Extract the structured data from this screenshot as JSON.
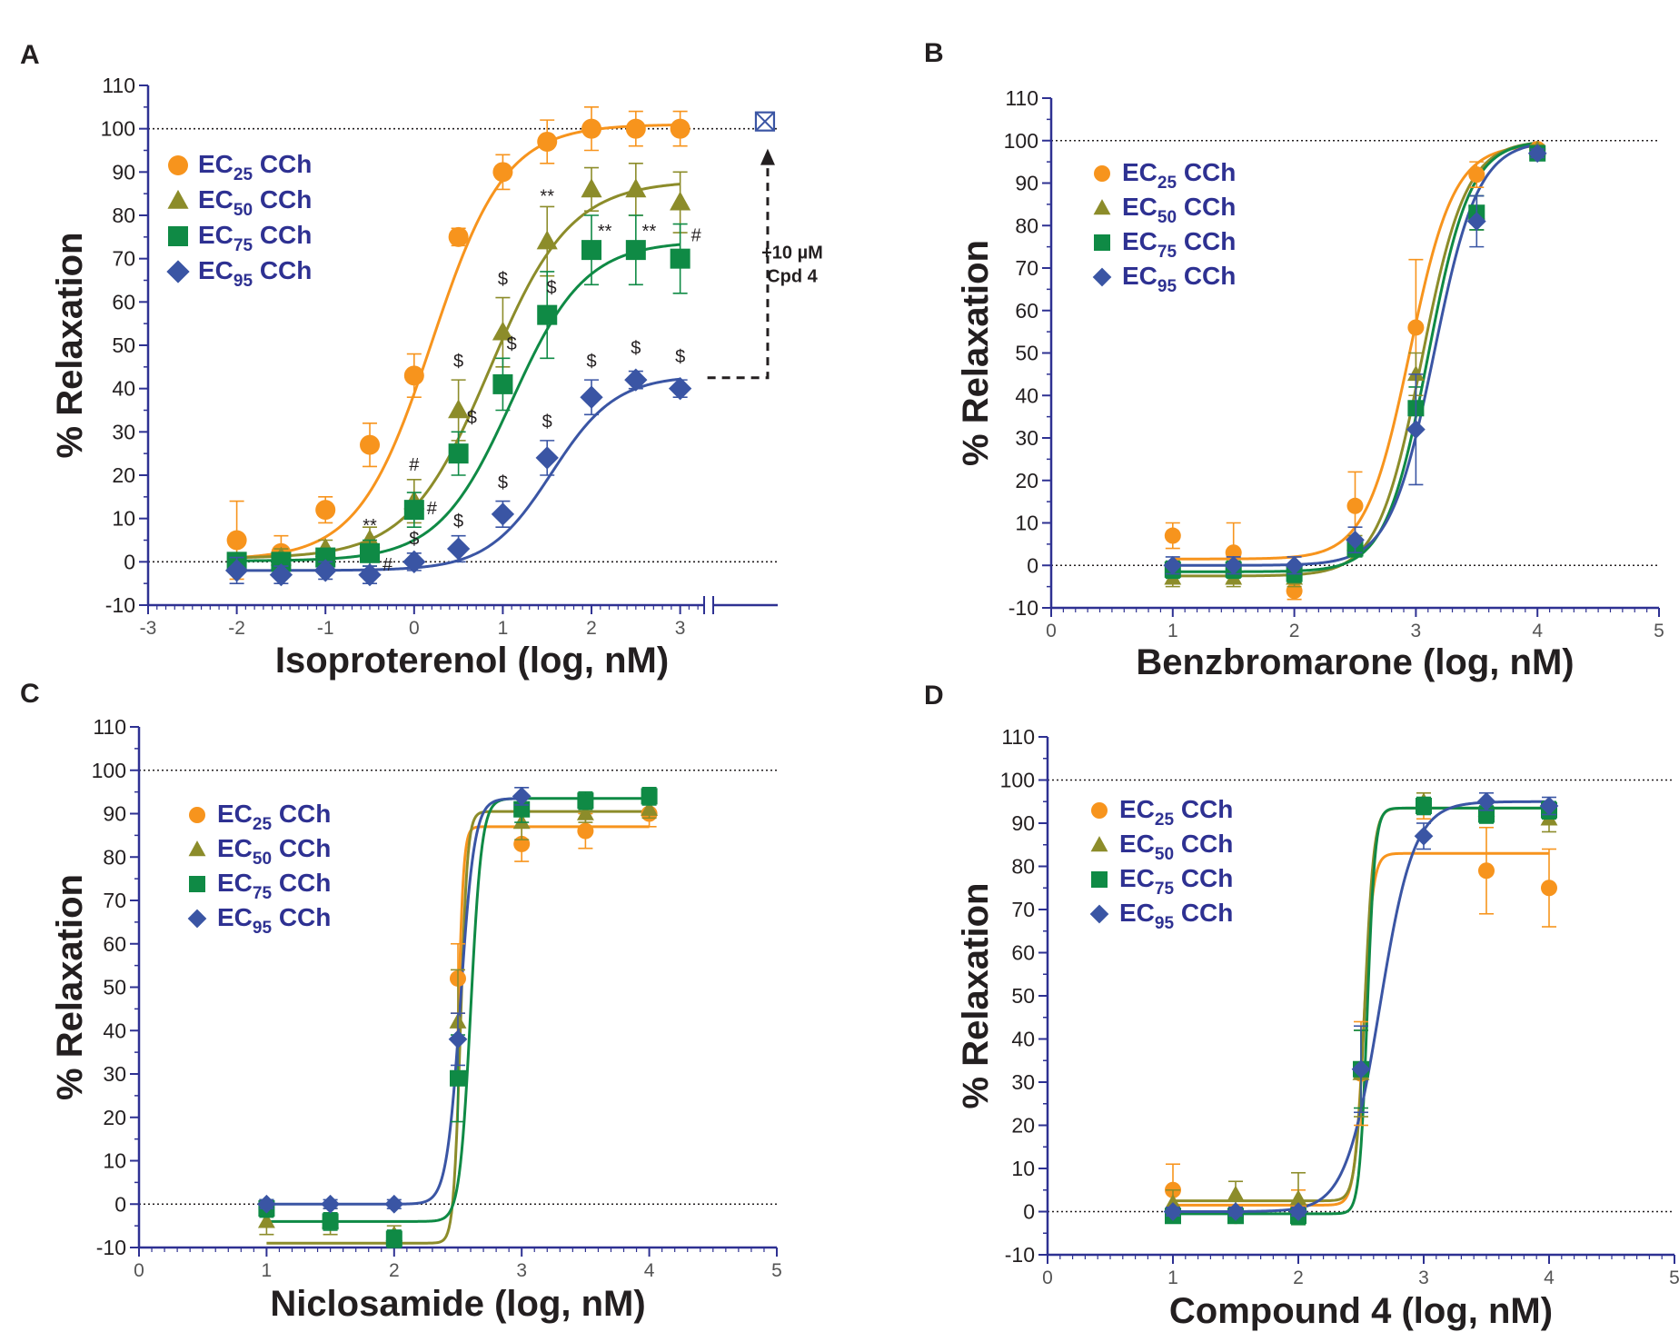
{
  "colors": {
    "axis": "#2e3192",
    "legend_text": "#2e3192",
    "text": "#231f20",
    "EC25": "#f7941d",
    "EC50": "#8c8c2a",
    "EC75": "#0f8a45",
    "EC95": "#3a55a4",
    "annotation": "#2e3192"
  },
  "legend_entries": [
    {
      "key": "EC25",
      "base": "EC",
      "sub": "25",
      "suffix": " CCh",
      "marker": "circle"
    },
    {
      "key": "EC50",
      "base": "EC",
      "sub": "50",
      "suffix": " CCh",
      "marker": "triangle"
    },
    {
      "key": "EC75",
      "base": "EC",
      "sub": "75",
      "suffix": " CCh",
      "marker": "square"
    },
    {
      "key": "EC95",
      "base": "EC",
      "sub": "95",
      "suffix": " CCh",
      "marker": "diamond"
    }
  ],
  "chart_data": [
    {
      "panel": "A",
      "type": "line",
      "xlabel": "Isoproterenol (log, nM)",
      "ylabel": "% Relaxation",
      "xlim": [
        -3,
        4.1
      ],
      "ylim": [
        -10,
        110
      ],
      "xticks": [
        -3,
        -2,
        -1,
        0,
        1,
        2,
        3
      ],
      "yticks": [
        -10,
        0,
        10,
        20,
        30,
        40,
        50,
        60,
        70,
        80,
        90,
        100,
        110
      ],
      "axis_break": true,
      "reference_lines": [
        0,
        100
      ],
      "legend_position": "top-left",
      "series": [
        {
          "key": "EC25",
          "name": "EC25 CCh",
          "x": [
            -2,
            -1.5,
            -1,
            -0.5,
            0,
            0.5,
            1,
            1.5,
            2,
            2.5,
            3
          ],
          "y": [
            5,
            2,
            12,
            27,
            43,
            75,
            90,
            97,
            100,
            100,
            100
          ],
          "err": [
            9,
            4,
            3,
            5,
            5,
            2,
            4,
            5,
            5,
            4,
            4
          ],
          "fit": {
            "bottom": 0.5,
            "top": 101,
            "ec50": 0.2,
            "hill": 1.05
          }
        },
        {
          "key": "EC50",
          "name": "EC50 CCh",
          "x": [
            -2,
            -1.5,
            -1,
            -0.5,
            0,
            0.5,
            1,
            1.5,
            2,
            2.5,
            3
          ],
          "y": [
            0,
            1,
            3,
            5,
            14,
            35,
            53,
            74,
            86,
            86,
            83
          ],
          "err": [
            2,
            2,
            2,
            3,
            5,
            7,
            8,
            8,
            5,
            6,
            7
          ],
          "fit": {
            "bottom": 0.8,
            "top": 88,
            "ec50": 0.85,
            "hill": 0.95
          }
        },
        {
          "key": "EC75",
          "name": "EC75 CCh",
          "x": [
            -2,
            -1.5,
            -1,
            -0.5,
            0,
            0.5,
            1,
            1.5,
            2,
            2.5,
            3
          ],
          "y": [
            0,
            0,
            1,
            2,
            12,
            25,
            41,
            57,
            72,
            72,
            70
          ],
          "err": [
            2,
            2,
            2,
            3,
            4,
            5,
            6,
            10,
            8,
            8,
            8
          ],
          "fit": {
            "bottom": 0.2,
            "top": 74,
            "ec50": 1.1,
            "hill": 1.05
          }
        },
        {
          "key": "EC95",
          "name": "EC95 CCh",
          "x": [
            -2,
            -1.5,
            -1,
            -0.5,
            0,
            0.5,
            1,
            1.5,
            2,
            2.5,
            3
          ],
          "y": [
            -2,
            -3,
            -2,
            -3,
            0,
            3,
            11,
            24,
            38,
            42,
            40
          ],
          "err": [
            3,
            2,
            2,
            2,
            2,
            3,
            3,
            4,
            4,
            2,
            2
          ],
          "fit": {
            "bottom": -2,
            "top": 43,
            "ec50": 1.55,
            "hill": 1.2
          }
        }
      ],
      "annotations": [
        {
          "text": "**",
          "x": -0.5,
          "y": 7
        },
        {
          "text": "#",
          "x": -0.3,
          "y": -2
        },
        {
          "text": "#",
          "x": 0,
          "y": 21
        },
        {
          "text": "#",
          "x": 0.2,
          "y": 11
        },
        {
          "text": "$",
          "x": 0,
          "y": 4
        },
        {
          "text": "$",
          "x": 0.5,
          "y": 8
        },
        {
          "text": "$",
          "x": 0.5,
          "y": 45
        },
        {
          "text": "$",
          "x": 0.65,
          "y": 32
        },
        {
          "text": "$",
          "x": 1,
          "y": 17
        },
        {
          "text": "$",
          "x": 1,
          "y": 64
        },
        {
          "text": "$",
          "x": 1.1,
          "y": 49
        },
        {
          "text": "$",
          "x": 1.5,
          "y": 31
        },
        {
          "text": "$",
          "x": 1.55,
          "y": 62
        },
        {
          "text": "**",
          "x": 1.5,
          "y": 83
        },
        {
          "text": "**",
          "x": 2.15,
          "y": 75
        },
        {
          "text": "**",
          "x": 2.65,
          "y": 75
        },
        {
          "text": "#",
          "x": 3.18,
          "y": 74
        },
        {
          "text": "$",
          "x": 2,
          "y": 45
        },
        {
          "text": "$",
          "x": 2.5,
          "y": 48
        },
        {
          "text": "$",
          "x": 3,
          "y": 46
        }
      ],
      "inset_point": {
        "x": 3.7,
        "y": 102
      },
      "arrow_label": [
        "+10 µM",
        "Cpd 4"
      ]
    },
    {
      "panel": "B",
      "type": "line",
      "xlabel": "Benzbromarone (log, nM)",
      "ylabel": "% Relaxation",
      "xlim": [
        0,
        5
      ],
      "ylim": [
        -10,
        110
      ],
      "xticks": [
        0,
        1,
        2,
        3,
        4,
        5
      ],
      "yticks": [
        -10,
        0,
        10,
        20,
        30,
        40,
        50,
        60,
        70,
        80,
        90,
        100,
        110
      ],
      "reference_lines": [
        0,
        100
      ],
      "legend_position": "top-left",
      "series": [
        {
          "key": "EC25",
          "name": "EC25 CCh",
          "x": [
            1,
            1.5,
            2,
            2.5,
            3,
            3.5,
            4
          ],
          "y": [
            7,
            3,
            -6,
            14,
            56,
            92,
            98
          ],
          "err": [
            3,
            7,
            2,
            8,
            16,
            3,
            1
          ],
          "fit": {
            "bottom": 1.5,
            "top": 99,
            "ec50": 2.95,
            "hill": 2.4
          }
        },
        {
          "key": "EC50",
          "name": "EC50 CCh",
          "x": [
            1,
            1.5,
            2,
            2.5,
            3,
            3.5,
            4
          ],
          "y": [
            -3,
            -3,
            -3,
            5,
            45,
            83,
            98
          ],
          "err": [
            2,
            2,
            2,
            2,
            5,
            4,
            1
          ],
          "fit": {
            "bottom": -2.5,
            "top": 100,
            "ec50": 3.05,
            "hill": 2.4
          }
        },
        {
          "key": "EC75",
          "name": "EC75 CCh",
          "x": [
            1,
            1.5,
            2,
            2.5,
            3,
            3.5,
            4
          ],
          "y": [
            -1,
            -1,
            -2,
            4,
            37,
            83,
            97
          ],
          "err": [
            2,
            2,
            2,
            2,
            5,
            4,
            1
          ],
          "fit": {
            "bottom": -1.5,
            "top": 100,
            "ec50": 3.1,
            "hill": 2.5
          }
        },
        {
          "key": "EC95",
          "name": "EC95 CCh",
          "x": [
            1,
            1.5,
            2,
            2.5,
            3,
            3.5,
            4
          ],
          "y": [
            0,
            0,
            0,
            6,
            32,
            81,
            97
          ],
          "err": [
            2,
            2,
            2,
            3,
            13,
            6,
            1
          ],
          "fit": {
            "bottom": 0,
            "top": 100,
            "ec50": 3.15,
            "hill": 2.4
          }
        }
      ]
    },
    {
      "panel": "C",
      "type": "line",
      "xlabel": "Niclosamide (log, nM)",
      "ylabel": "% Relaxation",
      "xlim": [
        0,
        5
      ],
      "ylim": [
        -10,
        110
      ],
      "xticks": [
        0,
        1,
        2,
        3,
        4,
        5
      ],
      "yticks": [
        -10,
        0,
        10,
        20,
        30,
        40,
        50,
        60,
        70,
        80,
        90,
        100,
        110
      ],
      "reference_lines": [
        0,
        100
      ],
      "legend_position": "top-left",
      "series": [
        {
          "key": "EC25",
          "name": "EC25 CCh",
          "x": [
            2.5,
            3,
            3.5,
            4
          ],
          "y": [
            52,
            83,
            86,
            90
          ],
          "err": [
            8,
            4,
            4,
            3
          ],
          "fit": {
            "bottom": -9,
            "top": 87,
            "ec50": 2.5,
            "hill": 20
          }
        },
        {
          "key": "EC50",
          "name": "EC50 CCh",
          "x": [
            1,
            1.5,
            2,
            2.5,
            3,
            3.5,
            4
          ],
          "y": [
            -4,
            -4,
            -7,
            42,
            88,
            90,
            91
          ],
          "err": [
            3,
            3,
            2,
            12,
            4,
            2,
            2
          ],
          "fit": {
            "bottom": -9,
            "top": 90.5,
            "ec50": 2.52,
            "hill": 16
          }
        },
        {
          "key": "EC75",
          "name": "EC75 CCh",
          "x": [
            1,
            1.5,
            2,
            2.5,
            3,
            3.5,
            4
          ],
          "y": [
            -1,
            -4,
            -8,
            29,
            91,
            93,
            94
          ],
          "err": [
            2,
            2,
            2,
            10,
            3,
            2,
            2
          ],
          "fit": {
            "bottom": -4,
            "top": 93.5,
            "ec50": 2.6,
            "hill": 10
          }
        },
        {
          "key": "EC95",
          "name": "EC95 CCh",
          "x": [
            1,
            1.5,
            2,
            2.5,
            3
          ],
          "y": [
            0,
            0,
            0,
            38,
            94
          ],
          "err": [
            1,
            1,
            1,
            6,
            2
          ],
          "fit": {
            "bottom": 0,
            "top": 93.5,
            "ec50": 2.52,
            "hill": 8
          }
        }
      ]
    },
    {
      "panel": "D",
      "type": "line",
      "xlabel": "Compound 4 (log, nM)",
      "ylabel": "% Relaxation",
      "xlim": [
        0,
        5
      ],
      "ylim": [
        -10,
        110
      ],
      "xticks": [
        0,
        1,
        2,
        3,
        4,
        5
      ],
      "yticks": [
        -10,
        0,
        10,
        20,
        30,
        40,
        50,
        60,
        70,
        80,
        90,
        100,
        110
      ],
      "reference_lines": [
        0,
        100
      ],
      "legend_position": "top-left",
      "series": [
        {
          "key": "EC25",
          "name": "EC25 CCh",
          "x": [
            1,
            1.5,
            2,
            2.5,
            3,
            3.5,
            4
          ],
          "y": [
            5,
            -1,
            1,
            32,
            94,
            79,
            75
          ],
          "err": [
            6,
            1,
            4,
            12,
            3,
            10,
            9
          ],
          "fit": {
            "bottom": 1.5,
            "top": 83,
            "ec50": 2.52,
            "hill": 12
          }
        },
        {
          "key": "EC50",
          "name": "EC50 CCh",
          "x": [
            1,
            1.5,
            2,
            2.5,
            3,
            3.5,
            4
          ],
          "y": [
            2,
            4,
            3,
            32,
            95,
            93,
            91
          ],
          "err": [
            3,
            3,
            6,
            10,
            2,
            2,
            3
          ],
          "fit": {
            "bottom": 2.5,
            "top": 93.5,
            "ec50": 2.53,
            "hill": 12
          }
        },
        {
          "key": "EC75",
          "name": "EC75 CCh",
          "x": [
            1,
            1.5,
            2,
            2.5,
            3,
            3.5,
            4
          ],
          "y": [
            -1,
            -1,
            -1,
            33,
            94,
            92,
            93
          ],
          "err": [
            1,
            1,
            2,
            9,
            2,
            2,
            2
          ],
          "fit": {
            "bottom": -0.5,
            "top": 93.5,
            "ec50": 2.55,
            "hill": 14
          }
        },
        {
          "key": "EC95",
          "name": "EC95 CCh",
          "x": [
            1,
            1.5,
            2,
            2.5,
            3,
            3.5,
            4
          ],
          "y": [
            0,
            0,
            0,
            33,
            87,
            95,
            94
          ],
          "err": [
            1,
            1,
            1,
            10,
            3,
            2,
            2
          ],
          "fit": {
            "bottom": 0,
            "top": 95,
            "ec50": 2.65,
            "hill": 3.2
          }
        }
      ]
    }
  ]
}
